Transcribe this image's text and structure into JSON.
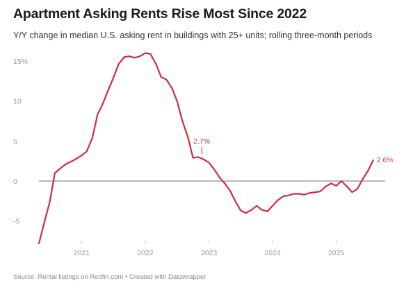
{
  "chart_data": {
    "type": "line",
    "title": "Apartment Asking Rents Rise Most Since 2022",
    "subtitle": "Y/Y change in median U.S. asking rent in buildings with 25+ units; rolling three-month periods",
    "xlabel": "",
    "ylabel": "",
    "xlim": [
      2020.33,
      2025.67
    ],
    "ylim": [
      -8,
      16.5
    ],
    "y_ticks": [
      {
        "value": 15,
        "label": "15%"
      },
      {
        "value": 10,
        "label": "10"
      },
      {
        "value": 5,
        "label": "5"
      },
      {
        "value": 0,
        "label": "0"
      },
      {
        "value": -5,
        "label": "-5"
      }
    ],
    "x_ticks": [
      {
        "value": 2021,
        "label": "2021"
      },
      {
        "value": 2022,
        "label": "2022"
      },
      {
        "value": 2023,
        "label": "2023"
      },
      {
        "value": 2024,
        "label": "2024"
      },
      {
        "value": 2025,
        "label": "2025"
      }
    ],
    "grid": false,
    "zero_line": true,
    "legend": "none",
    "line_color": "#d6293e",
    "zero_line_color": "#8c8c8c",
    "series": [
      {
        "points": [
          [
            2020.33,
            -7.8
          ],
          [
            2020.42,
            -5.0
          ],
          [
            2020.5,
            -2.6
          ],
          [
            2020.58,
            1.0
          ],
          [
            2020.67,
            1.6
          ],
          [
            2020.75,
            2.1
          ],
          [
            2020.83,
            2.4
          ],
          [
            2020.92,
            2.8
          ],
          [
            2021.0,
            3.2
          ],
          [
            2021.08,
            3.7
          ],
          [
            2021.17,
            5.4
          ],
          [
            2021.25,
            8.3
          ],
          [
            2021.33,
            9.6
          ],
          [
            2021.42,
            11.4
          ],
          [
            2021.5,
            12.9
          ],
          [
            2021.58,
            14.6
          ],
          [
            2021.67,
            15.5
          ],
          [
            2021.75,
            15.6
          ],
          [
            2021.83,
            15.4
          ],
          [
            2021.92,
            15.6
          ],
          [
            2022.0,
            16.0
          ],
          [
            2022.08,
            15.9
          ],
          [
            2022.17,
            14.6
          ],
          [
            2022.25,
            13.0
          ],
          [
            2022.33,
            12.7
          ],
          [
            2022.42,
            11.6
          ],
          [
            2022.5,
            10.0
          ],
          [
            2022.58,
            7.6
          ],
          [
            2022.67,
            5.5
          ],
          [
            2022.75,
            2.9
          ],
          [
            2022.83,
            3.0
          ],
          [
            2022.92,
            2.7
          ],
          [
            2023.0,
            2.3
          ],
          [
            2023.08,
            1.5
          ],
          [
            2023.17,
            0.4
          ],
          [
            2023.25,
            -0.3
          ],
          [
            2023.33,
            -1.2
          ],
          [
            2023.42,
            -2.6
          ],
          [
            2023.5,
            -3.7
          ],
          [
            2023.58,
            -4.0
          ],
          [
            2023.67,
            -3.6
          ],
          [
            2023.75,
            -3.1
          ],
          [
            2023.83,
            -3.6
          ],
          [
            2023.92,
            -3.8
          ],
          [
            2024.0,
            -3.1
          ],
          [
            2024.08,
            -2.4
          ],
          [
            2024.17,
            -1.9
          ],
          [
            2024.25,
            -1.8
          ],
          [
            2024.33,
            -1.6
          ],
          [
            2024.42,
            -1.6
          ],
          [
            2024.5,
            -1.7
          ],
          [
            2024.58,
            -1.5
          ],
          [
            2024.67,
            -1.4
          ],
          [
            2024.75,
            -1.3
          ],
          [
            2024.83,
            -0.7
          ],
          [
            2024.92,
            -0.3
          ],
          [
            2025.0,
            -0.6
          ],
          [
            2025.08,
            0.0
          ],
          [
            2025.17,
            -0.7
          ],
          [
            2025.25,
            -1.4
          ],
          [
            2025.33,
            -1.0
          ],
          [
            2025.42,
            0.3
          ],
          [
            2025.5,
            1.3
          ],
          [
            2025.58,
            2.6
          ]
        ]
      }
    ],
    "annotations": [
      {
        "x": 2022.92,
        "y": 2.7,
        "label": "2.7%",
        "position": "above",
        "leader_line": true
      },
      {
        "x": 2025.58,
        "y": 2.6,
        "label": "2.6%",
        "position": "right",
        "leader_line": false
      }
    ]
  },
  "source": "Source: Rental listings on Redfin.com • Created with Datawrapper"
}
